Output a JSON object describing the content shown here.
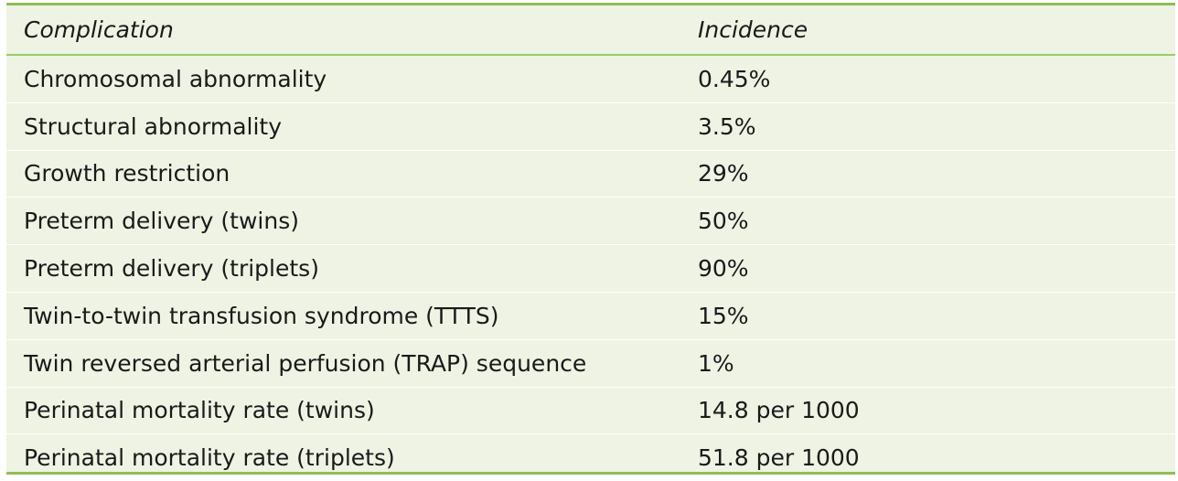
{
  "header": {
    "col_complication": "Complication",
    "col_incidence": "Incidence"
  },
  "rows": [
    {
      "complication": "Chromosomal abnormality",
      "incidence": "0.45%"
    },
    {
      "complication": "Structural abnormality",
      "incidence": "3.5%"
    },
    {
      "complication": "Growth restriction",
      "incidence": "29%"
    },
    {
      "complication": "Preterm delivery (twins)",
      "incidence": "50%"
    },
    {
      "complication": "Preterm delivery (triplets)",
      "incidence": "90%"
    },
    {
      "complication": "Twin-to-twin transfusion syndrome (TTTS)",
      "incidence": "15%"
    },
    {
      "complication": "Twin reversed arterial perfusion (TRAP) sequence",
      "incidence": "1%"
    },
    {
      "complication": "Perinatal mortality rate (twins)",
      "incidence": "14.8 per 1000"
    },
    {
      "complication": "Perinatal mortality rate (triplets)",
      "incidence": "51.8 per 1000"
    }
  ],
  "colors": {
    "rule": "#8dbf55",
    "background": "#eef3e3"
  }
}
